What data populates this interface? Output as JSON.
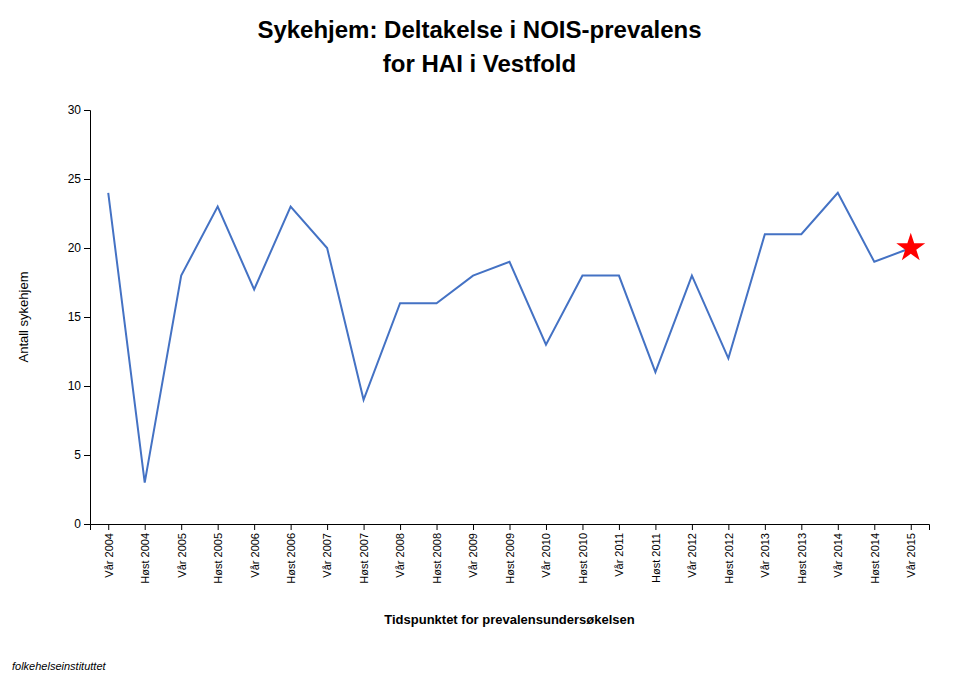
{
  "chart_data": {
    "type": "line",
    "title": "Sykehjem: Deltakelse i NOIS-prevalens",
    "subtitle": "for HAI i Vestfold",
    "ylabel": "Antall sykehjem",
    "xlabel": "Tidspunktet for prevalensundersøkelsen",
    "annotations": [
      "folkehelseinstituttet"
    ],
    "categories": [
      "Vår 2004",
      "Høst 2004",
      "Vår 2005",
      "Høst 2005",
      "Vår 2006",
      "Høst 2006",
      "Vår 2007",
      "Høst 2007",
      "Vår 2008",
      "Høst 2008",
      "Vår 2009",
      "Høst 2009",
      "Vår 2010",
      "Høst 2010",
      "Vår 2011",
      "Høst 2011",
      "Vår 2012",
      "Høst 2012",
      "Vår 2013",
      "Høst 2013",
      "Vår 2014",
      "Høst 2014",
      "Vår 2015"
    ],
    "series": [
      {
        "type": "line",
        "color": "#4472C4",
        "values": [
          24,
          3,
          18,
          23,
          17,
          23,
          20,
          9,
          16,
          16,
          18,
          19,
          13,
          18,
          18,
          11,
          18,
          12,
          21,
          21,
          24,
          19,
          20
        ]
      },
      {
        "type": "scatter",
        "color": "red",
        "marker": "star",
        "values": [
          null,
          null,
          null,
          null,
          null,
          null,
          null,
          null,
          null,
          null,
          null,
          null,
          null,
          null,
          null,
          null,
          null,
          null,
          null,
          null,
          null,
          null,
          20
        ]
      }
    ],
    "ylim": [
      0,
      30
    ],
    "yticks": [
      0,
      5,
      10,
      15,
      20,
      25,
      30
    ],
    "grid": false
  }
}
